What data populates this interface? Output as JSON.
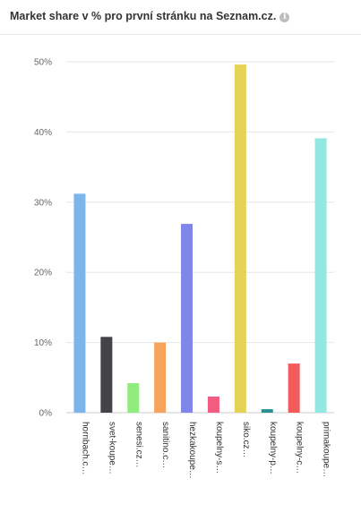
{
  "header": {
    "title": "Market share v % pro první stránku na Seznam.cz.",
    "info_icon": "info-icon"
  },
  "chart_data": {
    "type": "bar",
    "title": "Market share v % pro první stránku na Seznam.cz.",
    "categories": [
      "hornbach.c…",
      "svet-koupe…",
      "senesi.cz…",
      "sanitino.c…",
      "hezkakoupe…",
      "koupelny-s…",
      "siko.cz…",
      "koupelny-p…",
      "koupelny-c…",
      "primakoupe…"
    ],
    "values": [
      31.2,
      10.8,
      4.2,
      10.0,
      26.9,
      2.3,
      49.6,
      0.5,
      7.0,
      39.1
    ],
    "colors": [
      "#7cb5ec",
      "#434348",
      "#90ed7d",
      "#f7a35c",
      "#8085e9",
      "#f15c80",
      "#e4d354",
      "#2b908f",
      "#f45b5b",
      "#91e8e1"
    ],
    "ylim": [
      0,
      50
    ],
    "yticks": [
      "0%",
      "10%",
      "20%",
      "30%",
      "40%",
      "50%"
    ],
    "grid": true,
    "xlabel": "",
    "ylabel": ""
  }
}
